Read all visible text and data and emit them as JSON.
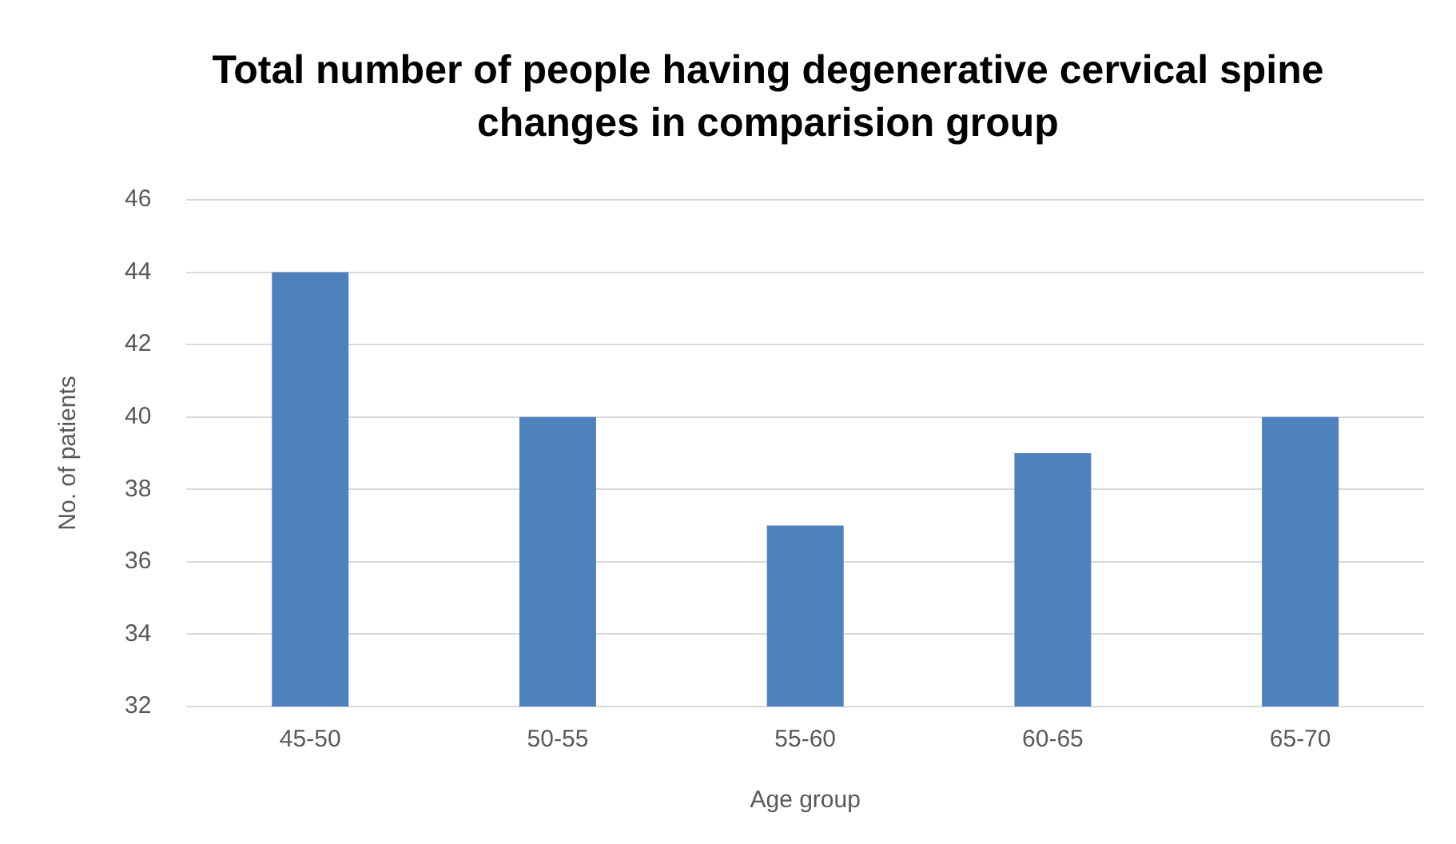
{
  "chart_data": {
    "type": "bar",
    "title": "Total number of people having degenerative cervical spine changes in comparision group",
    "xlabel": "Age group",
    "ylabel": "No. of patients",
    "categories": [
      "45-50",
      "50-55",
      "55-60",
      "60-65",
      "65-70"
    ],
    "values": [
      44,
      40,
      37,
      39,
      40
    ],
    "color": "#4f81bd",
    "ylim": [
      32,
      46
    ],
    "yticks": [
      32,
      34,
      36,
      38,
      40,
      42,
      44,
      46
    ],
    "grid": "y"
  }
}
